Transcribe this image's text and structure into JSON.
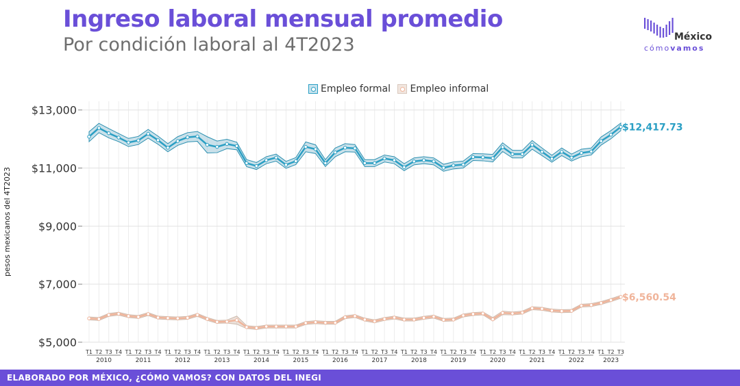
{
  "header": {
    "title": "Ingreso laboral mensual promedio",
    "subtitle": "Por condición laboral al 4T2023"
  },
  "logo": {
    "name_top": "México",
    "name_bottom_a": "cómo",
    "name_bottom_b": "vamos"
  },
  "footer": {
    "text": "ELABORADO POR MÉXICO, ¿CÓMO VAMOS? CON DATOS DEL INEGI"
  },
  "colors": {
    "accent": "#6a4fd8",
    "formal": "#2a9fc4",
    "formal_band": "#9fc9d9",
    "informal": "#f0b49a",
    "informal_band": "#d9c8bd"
  },
  "chart_data": {
    "type": "line",
    "ylabel": "pesos mexicanos del 4T2023",
    "ylim": [
      5000,
      13300
    ],
    "yticks": [
      5000,
      7000,
      9000,
      11000,
      13000
    ],
    "ytick_labels": [
      "$5,000",
      "$7,000",
      "$9,000",
      "$11,000",
      "$13,000"
    ],
    "quarter_labels": [
      "T1",
      "T2",
      "T3",
      "T4"
    ],
    "years": [
      "2010",
      "2011",
      "2012",
      "2013",
      "2014",
      "2015",
      "2016",
      "2017",
      "2018",
      "2019",
      "2020",
      "2021",
      "2022",
      "2023"
    ],
    "legend": [
      "Empleo formal",
      "Empleo informal"
    ],
    "legend_position": "top",
    "grid": true,
    "series": [
      {
        "name": "Empleo formal",
        "end_label": "$12,417.73",
        "values": [
          12080,
          12380,
          12200,
          12050,
          11880,
          11950,
          12180,
          11960,
          11700,
          11930,
          12060,
          12090,
          11800,
          11730,
          11830,
          11760,
          11170,
          11070,
          11270,
          11360,
          11110,
          11240,
          11730,
          11650,
          11170,
          11540,
          11700,
          11680,
          11170,
          11170,
          11330,
          11270,
          11030,
          11230,
          11270,
          11230,
          11010,
          11090,
          11120,
          11380,
          11370,
          11340,
          11720,
          11480,
          11480,
          11800,
          11560,
          11320,
          11560,
          11360,
          11520,
          11570,
          11930,
          12150,
          12417.73
        ],
        "band_halfwidth": [
          170,
          160,
          160,
          140,
          140,
          140,
          150,
          140,
          140,
          150,
          160,
          170,
          280,
          200,
          160,
          130,
          120,
          120,
          120,
          120,
          120,
          120,
          170,
          150,
          120,
          150,
          140,
          130,
          120,
          120,
          120,
          120,
          120,
          120,
          120,
          120,
          120,
          120,
          120,
          120,
          120,
          130,
          150,
          130,
          130,
          150,
          130,
          120,
          130,
          120,
          130,
          120,
          140,
          140,
          130
        ]
      },
      {
        "name": "Empleo informal",
        "end_label": "$6,560.54",
        "values": [
          5820,
          5800,
          5940,
          5980,
          5900,
          5870,
          5970,
          5850,
          5830,
          5820,
          5840,
          5940,
          5800,
          5700,
          5710,
          5760,
          5520,
          5490,
          5540,
          5540,
          5540,
          5540,
          5660,
          5690,
          5670,
          5670,
          5860,
          5900,
          5780,
          5720,
          5800,
          5850,
          5780,
          5780,
          5840,
          5880,
          5770,
          5780,
          5920,
          5970,
          5990,
          5790,
          6010,
          5990,
          6020,
          6170,
          6150,
          6090,
          6070,
          6080,
          6260,
          6280,
          6350,
          6450,
          6560.54
        ],
        "band_halfwidth": [
          50,
          50,
          50,
          50,
          50,
          50,
          50,
          50,
          50,
          50,
          50,
          50,
          50,
          50,
          50,
          140,
          50,
          50,
          50,
          50,
          50,
          50,
          50,
          50,
          50,
          50,
          50,
          50,
          50,
          50,
          50,
          50,
          50,
          50,
          50,
          50,
          50,
          50,
          50,
          50,
          50,
          60,
          60,
          50,
          50,
          50,
          50,
          50,
          50,
          50,
          50,
          50,
          50,
          50,
          50
        ]
      }
    ]
  }
}
